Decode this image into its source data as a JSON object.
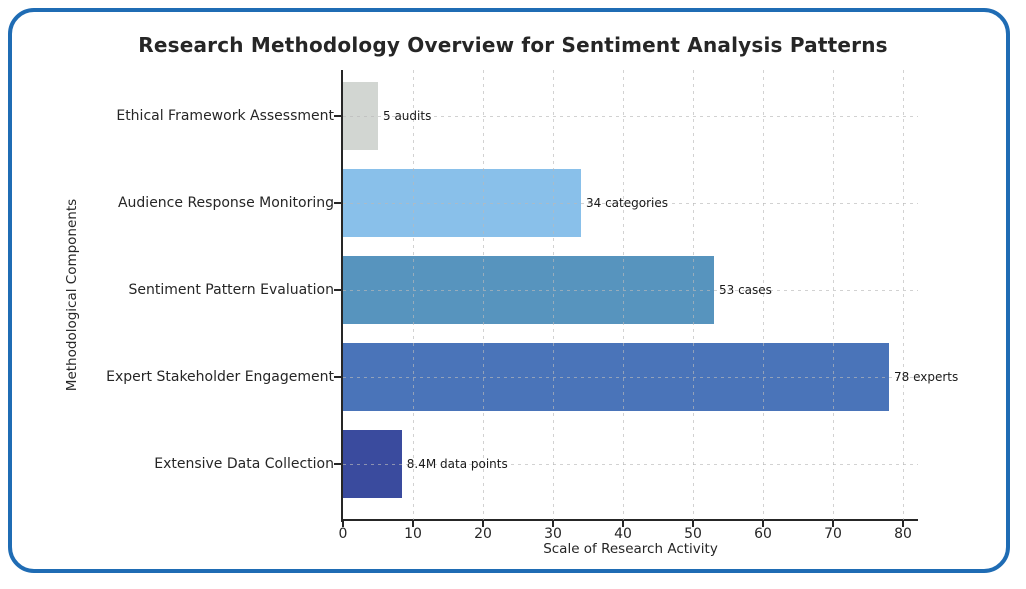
{
  "frame": {
    "border_color": "#1f6cb4",
    "background_color": "#ffffff"
  },
  "chart_data": {
    "type": "bar",
    "orientation": "horizontal",
    "title": "Research Methodology Overview for Sentiment Analysis Patterns",
    "xlabel": "Scale of Research Activity",
    "ylabel": "Methodological Components",
    "categories": [
      "Ethical Framework Assessment",
      "Audience Response Monitoring",
      "Sentiment Pattern Evaluation",
      "Expert Stakeholder Engagement",
      "Extensive Data Collection"
    ],
    "values": [
      5,
      34,
      53,
      78,
      8.4
    ],
    "value_labels": [
      "5 audits",
      "34 categories",
      "53 cases",
      "78 experts",
      "8.4M data points"
    ],
    "bar_colors": [
      "#d2d6d2",
      "#89c0ea",
      "#5794be",
      "#4a74b9",
      "#3a4b9e"
    ],
    "x_ticks": [
      0,
      10,
      20,
      30,
      40,
      50,
      60,
      70,
      80
    ],
    "xlim": [
      0,
      82.1
    ],
    "grid": true,
    "grid_style": "dashed",
    "legend": "none",
    "text_color": "#262626"
  }
}
